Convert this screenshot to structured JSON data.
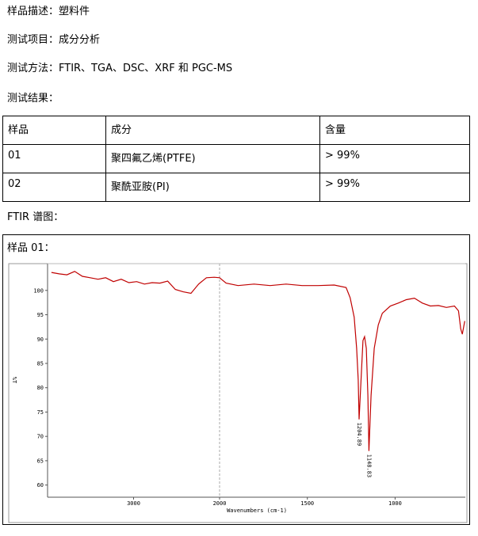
{
  "lines": [
    "样品描述：塑料件",
    "测试项目：成分分析",
    "测试方法：FTIR、TGA、DSC、XRF 和 PGC-MS",
    "测试结果："
  ],
  "table": {
    "header": [
      "样品",
      "成分",
      "含量"
    ],
    "rows": [
      [
        "01",
        "聚四氟乙烯(PTFE)",
        "> 99%"
      ],
      [
        "02",
        "聚酰亚胺(PI)",
        "> 99%"
      ]
    ]
  },
  "ftir_heading": "FTIR 谱图：",
  "sample_label": "样品 01：",
  "chart_data": {
    "type": "line",
    "x_label": "Wavenumbers (cm-1)",
    "y_label": "%T",
    "color": "#c00000",
    "x": [
      3955,
      3865,
      3775,
      3685,
      3595,
      3504,
      3414,
      3324,
      3234,
      3144,
      3054,
      2964,
      2874,
      2784,
      2694,
      2604,
      2514,
      2423,
      2333,
      2243,
      2153,
      2063,
      2000,
      1963,
      1895,
      1804,
      1712,
      1621,
      1530,
      1438,
      1347,
      1279,
      1256,
      1233,
      1219,
      1210,
      1205,
      1183,
      1174,
      1164,
      1155,
      1149,
      1137,
      1119,
      1096,
      1073,
      1027,
      982,
      936,
      890,
      845,
      799,
      753,
      708,
      662,
      639,
      626,
      617,
      603
    ],
    "values": [
      103.7,
      103.4,
      103.2,
      103.9,
      102.9,
      102.6,
      102.3,
      102.6,
      101.8,
      102.3,
      101.6,
      101.8,
      101.3,
      101.6,
      101.5,
      101.9,
      100.2,
      99.7,
      99.4,
      101.3,
      102.6,
      102.7,
      102.6,
      101.5,
      101.0,
      101.3,
      101.0,
      101.3,
      101.0,
      101.0,
      101.1,
      100.6,
      98.5,
      94.5,
      88.1,
      81.6,
      73.5,
      89.7,
      90.5,
      88.1,
      78.4,
      67,
      78.4,
      88.1,
      92.9,
      95.3,
      96.8,
      97.4,
      98.1,
      98.4,
      97.4,
      96.8,
      96.9,
      96.5,
      96.8,
      95.8,
      92.1,
      91.0,
      93.7
    ],
    "xlim": [
      4000,
      600
    ],
    "xticks": [
      3000,
      2000,
      1500,
      1000
    ],
    "x_break": 2000,
    "ylim": [
      57.5,
      105.5
    ],
    "yticks": [
      60,
      65,
      70,
      75,
      80,
      85,
      90,
      95,
      100
    ],
    "peak_labels": [
      1204.89,
      1148.83
    ]
  }
}
